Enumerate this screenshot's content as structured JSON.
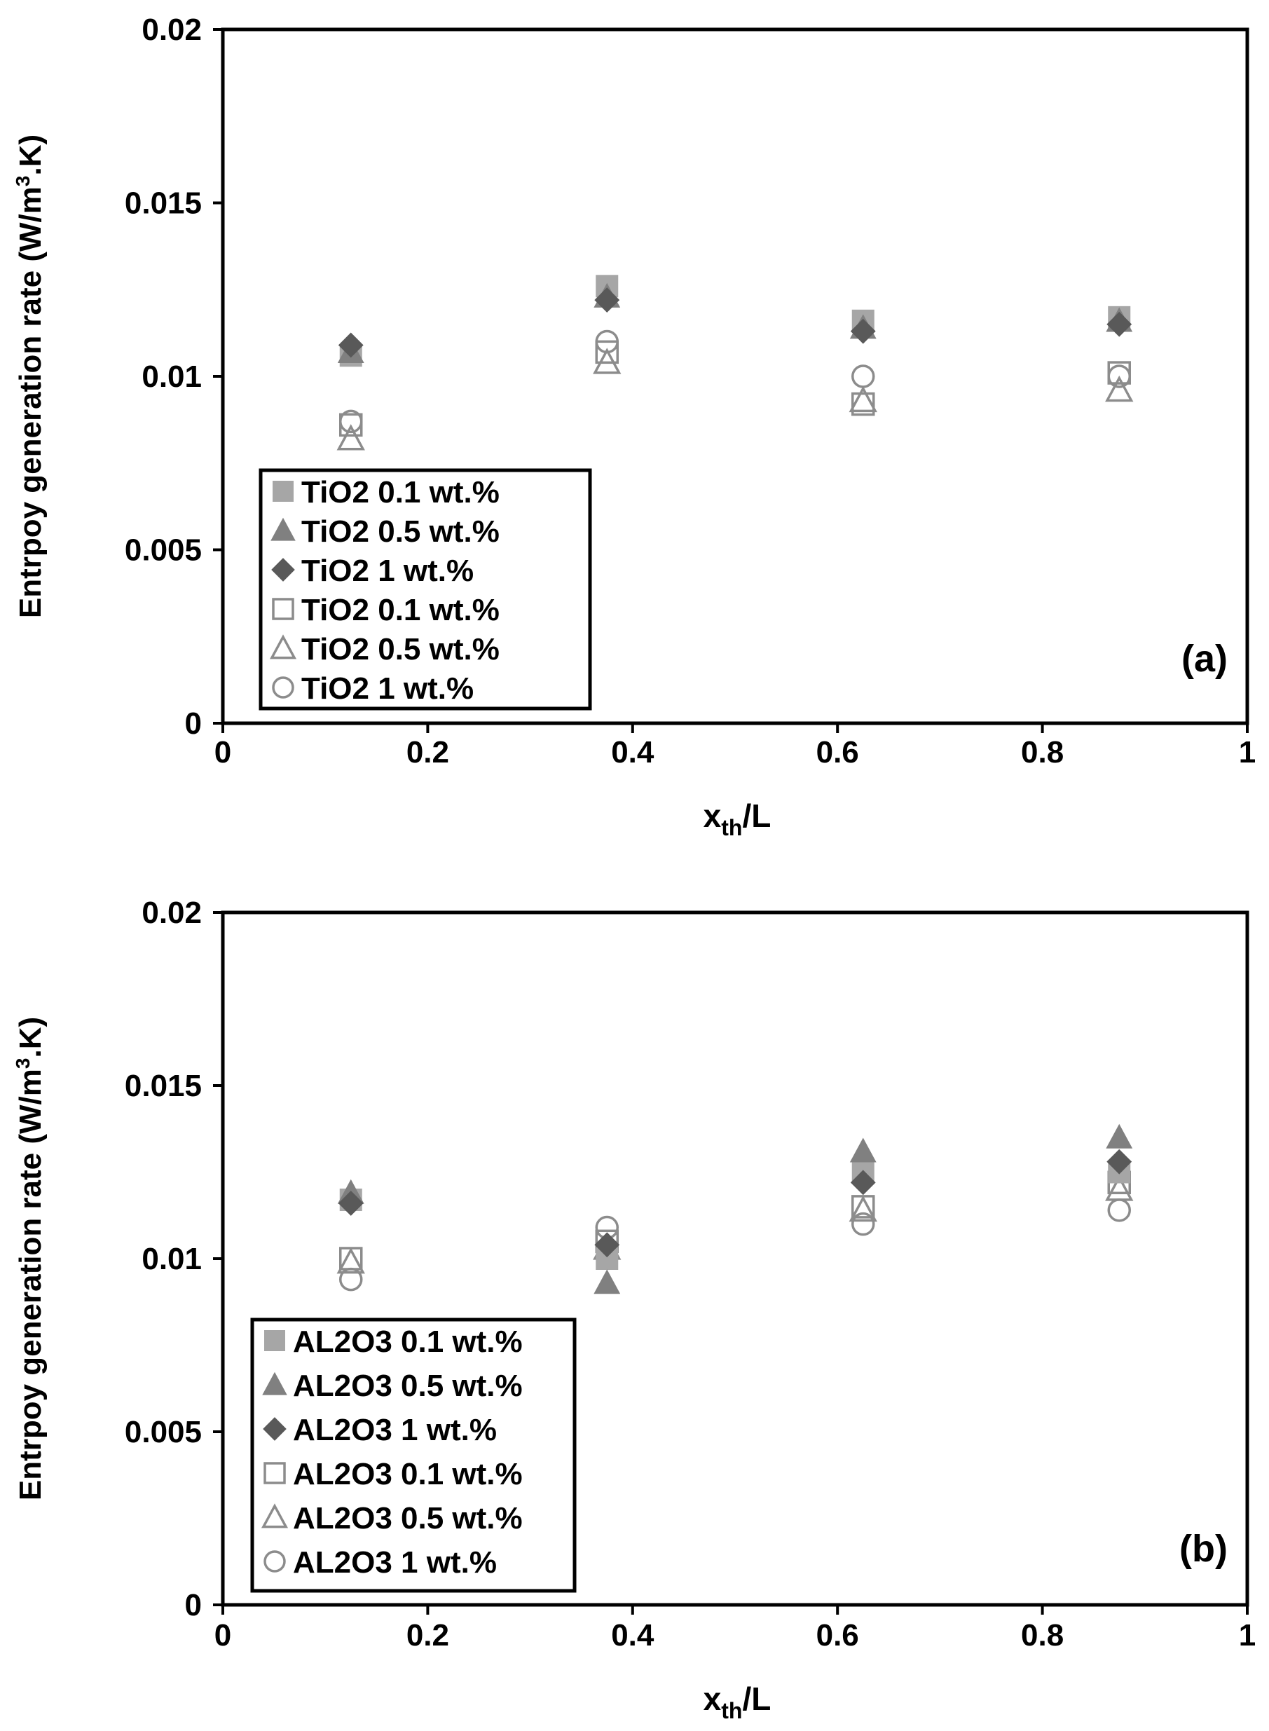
{
  "chart_data": [
    {
      "type": "scatter",
      "panel_label": "(a)",
      "xlabel_main": "x",
      "xlabel_sub": "th",
      "xlabel_rest": "/L",
      "ylabel": "Entrpoy generation rate (W/m",
      "ylabel_sup": "3",
      "ylabel_rest": ".K)",
      "xlim": [
        0,
        1
      ],
      "ylim": [
        0,
        0.02
      ],
      "x_ticks": [
        "0",
        "0.2",
        "0.4",
        "0.6",
        "0.8",
        "1"
      ],
      "x_tick_values": [
        0,
        0.2,
        0.4,
        0.6,
        0.8,
        1
      ],
      "y_ticks": [
        "0",
        "0.005",
        "0.01",
        "0.015",
        "0.02"
      ],
      "y_tick_values": [
        0,
        0.005,
        0.01,
        0.015,
        0.02
      ],
      "grid": false,
      "legend_position": "bottom-left",
      "series": [
        {
          "name": "TiO2 0.1 wt.%",
          "marker": "square",
          "filled": true,
          "color": "#a6a6a6",
          "points": [
            [
              0.125,
              0.0106
            ],
            [
              0.375,
              0.0126
            ],
            [
              0.625,
              0.0116
            ],
            [
              0.875,
              0.0117
            ]
          ]
        },
        {
          "name": "TiO2 0.5 wt.%",
          "marker": "triangle",
          "filled": true,
          "color": "#808080",
          "points": [
            [
              0.125,
              0.0107
            ],
            [
              0.375,
              0.0123
            ],
            [
              0.625,
              0.0114
            ],
            [
              0.875,
              0.0116
            ]
          ]
        },
        {
          "name": "TiO2 1 wt.%",
          "marker": "diamond",
          "filled": true,
          "color": "#595959",
          "points": [
            [
              0.125,
              0.0109
            ],
            [
              0.375,
              0.0122
            ],
            [
              0.625,
              0.0113
            ],
            [
              0.875,
              0.0115
            ]
          ]
        },
        {
          "name": "TiO2 0.1 wt.%",
          "marker": "square",
          "filled": false,
          "color": "#8c8c8c",
          "points": [
            [
              0.125,
              0.0086
            ],
            [
              0.375,
              0.0107
            ],
            [
              0.625,
              0.0092
            ],
            [
              0.875,
              0.0101
            ]
          ]
        },
        {
          "name": "TiO2 0.5 wt.%",
          "marker": "triangle",
          "filled": false,
          "color": "#8c8c8c",
          "points": [
            [
              0.125,
              0.0082
            ],
            [
              0.375,
              0.0104
            ],
            [
              0.625,
              0.0093
            ],
            [
              0.875,
              0.0096
            ]
          ]
        },
        {
          "name": "TiO2 1 wt.%",
          "marker": "circle",
          "filled": false,
          "color": "#8c8c8c",
          "points": [
            [
              0.125,
              0.0087
            ],
            [
              0.375,
              0.011
            ],
            [
              0.625,
              0.01
            ],
            [
              0.875,
              0.01
            ]
          ]
        }
      ]
    },
    {
      "type": "scatter",
      "panel_label": "(b)",
      "xlabel_main": "x",
      "xlabel_sub": "th",
      "xlabel_rest": "/L",
      "ylabel": "Entrpoy generation rate (W/m",
      "ylabel_sup": "3",
      "ylabel_rest": ".K)",
      "xlim": [
        0,
        1
      ],
      "ylim": [
        0,
        0.02
      ],
      "x_ticks": [
        "0",
        "0.2",
        "0.4",
        "0.6",
        "0.8",
        "1"
      ],
      "x_tick_values": [
        0,
        0.2,
        0.4,
        0.6,
        0.8,
        1
      ],
      "y_ticks": [
        "0",
        "0.005",
        "0.01",
        "0.015",
        "0.02"
      ],
      "y_tick_values": [
        0,
        0.005,
        0.01,
        0.015,
        0.02
      ],
      "grid": false,
      "legend_position": "bottom-left",
      "series": [
        {
          "name": "AL2O3 0.1 wt.%",
          "marker": "square",
          "filled": true,
          "color": "#a6a6a6",
          "points": [
            [
              0.125,
              0.0117
            ],
            [
              0.375,
              0.01
            ],
            [
              0.625,
              0.0125
            ],
            [
              0.875,
              0.0125
            ]
          ]
        },
        {
          "name": "AL2O3 0.5 wt.%",
          "marker": "triangle",
          "filled": true,
          "color": "#808080",
          "points": [
            [
              0.125,
              0.0119
            ],
            [
              0.375,
              0.0093
            ],
            [
              0.625,
              0.0131
            ],
            [
              0.875,
              0.0135
            ]
          ]
        },
        {
          "name": "AL2O3 1 wt.%",
          "marker": "diamond",
          "filled": true,
          "color": "#595959",
          "points": [
            [
              0.125,
              0.0116
            ],
            [
              0.375,
              0.0104
            ],
            [
              0.625,
              0.0122
            ],
            [
              0.875,
              0.0128
            ]
          ]
        },
        {
          "name": "AL2O3 0.1 wt.%",
          "marker": "square",
          "filled": false,
          "color": "#8c8c8c",
          "points": [
            [
              0.125,
              0.01
            ],
            [
              0.375,
              0.0105
            ],
            [
              0.625,
              0.0115
            ],
            [
              0.875,
              0.0122
            ]
          ]
        },
        {
          "name": "AL2O3 0.5 wt.%",
          "marker": "triangle",
          "filled": false,
          "color": "#8c8c8c",
          "points": [
            [
              0.125,
              0.0099
            ],
            [
              0.375,
              0.0103
            ],
            [
              0.625,
              0.0114
            ],
            [
              0.875,
              0.012
            ]
          ]
        },
        {
          "name": "AL2O3 1 wt.%",
          "marker": "circle",
          "filled": false,
          "color": "#8c8c8c",
          "points": [
            [
              0.125,
              0.0094
            ],
            [
              0.375,
              0.0109
            ],
            [
              0.625,
              0.011
            ],
            [
              0.875,
              0.0114
            ]
          ]
        }
      ]
    }
  ]
}
